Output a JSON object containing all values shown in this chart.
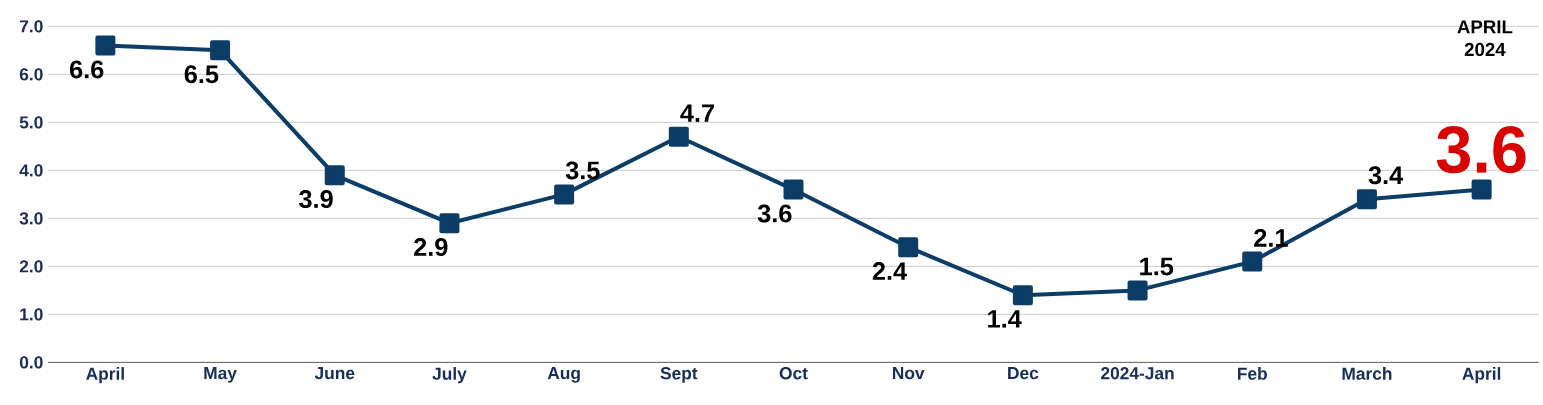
{
  "chart_data": {
    "type": "line",
    "categories": [
      "April",
      "May",
      "June",
      "July",
      "Aug",
      "Sept",
      "Oct",
      "Nov",
      "Dec",
      "2024-Jan",
      "Feb",
      "March",
      "April"
    ],
    "values": [
      6.6,
      6.5,
      3.9,
      2.9,
      3.5,
      4.7,
      3.6,
      2.4,
      1.4,
      1.5,
      2.1,
      3.4,
      3.6
    ],
    "color": "#0b3d66",
    "ylim": [
      0,
      7
    ],
    "yticks": [
      {
        "value": 0,
        "label": "0.0"
      },
      {
        "value": 1,
        "label": "1.0"
      },
      {
        "value": 2,
        "label": "2.0"
      },
      {
        "value": 3,
        "label": "3.0"
      },
      {
        "value": 4,
        "label": "4.0"
      },
      {
        "value": 5,
        "label": "5.0"
      },
      {
        "value": 6,
        "label": "6.0"
      },
      {
        "value": 7,
        "label": "7.0"
      }
    ],
    "grid": "y",
    "marker": "square",
    "line_style": "solid",
    "data_labels": true,
    "annotations": [
      "APRIL 2024"
    ]
  }
}
